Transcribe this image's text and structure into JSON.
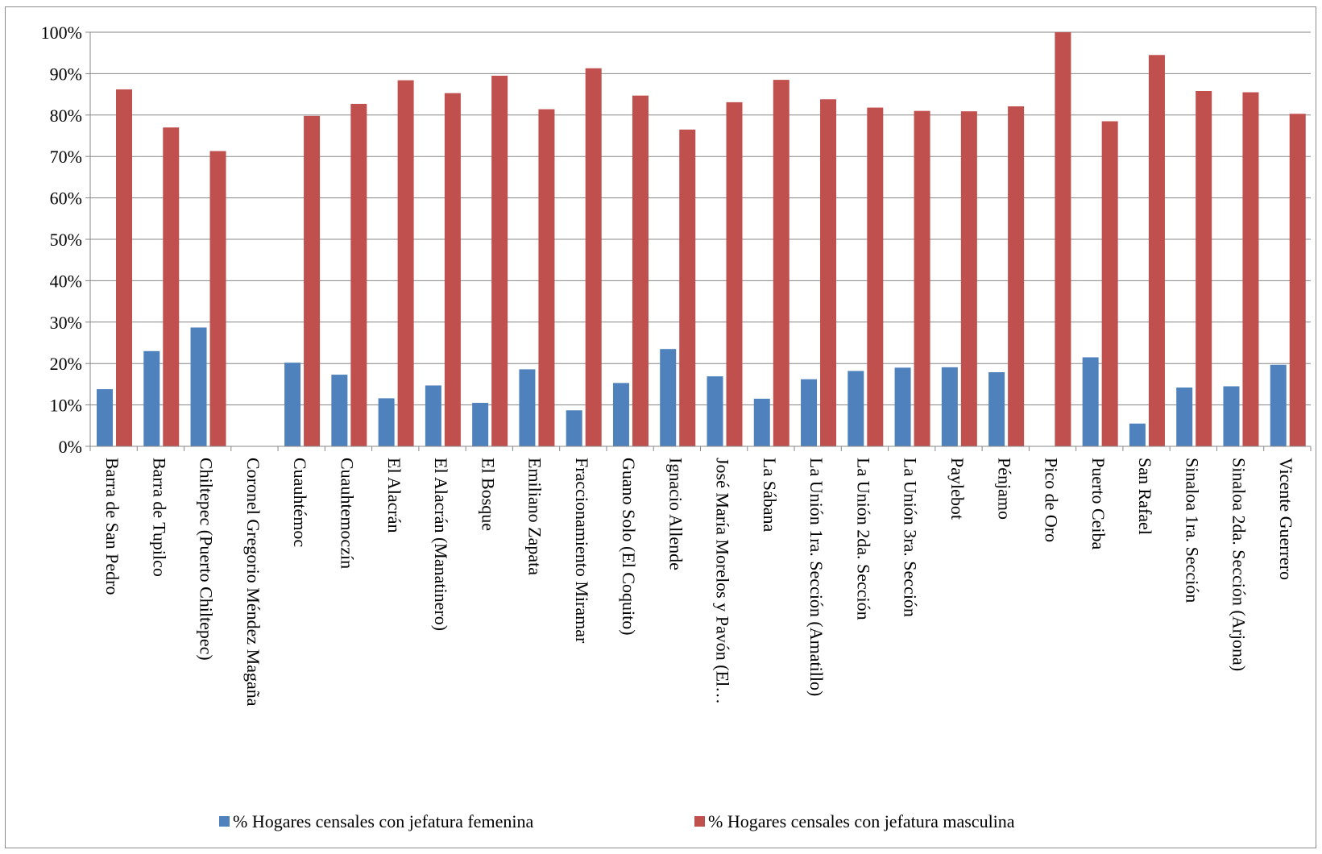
{
  "chart_data": {
    "type": "bar",
    "categories": [
      "Barra de San Pedro",
      "Barra de Tupilco",
      "Chiltepec (Puerto Chiltepec)",
      "Coronel Gregorio Méndez Magaña",
      "Cuauhtémoc",
      "Cuauhtemoczín",
      "El Alacrán",
      "El Alacrán (Manatinero)",
      "El Bosque",
      "Emiliano Zapata",
      "Fraccionamiento Miramar",
      "Guano Solo (El Coquito)",
      "Ignacio Allende",
      "José María Morelos y Pavón (El…",
      "La Sábana",
      "La Unión 1ra. Sección (Amatillo)",
      "La Unión 2da. Sección",
      "La Unión 3ra. Sección",
      "Paylebot",
      "Pénjamo",
      "Pico de Oro",
      "Puerto Ceiba",
      "San Rafael",
      "Sinaloa 1ra. Sección",
      "Sinaloa 2da. Sección (Arjona)",
      "Vicente Guerrero"
    ],
    "series": [
      {
        "name": "% Hogares censales con jefatura femenina",
        "color": "#4F81BD",
        "values": [
          13.8,
          23.0,
          28.7,
          0,
          20.2,
          17.3,
          11.6,
          14.7,
          10.5,
          18.6,
          8.7,
          15.3,
          23.5,
          16.9,
          11.5,
          16.2,
          18.2,
          19.0,
          19.1,
          17.9,
          0,
          21.5,
          5.5,
          14.2,
          14.5,
          19.7
        ]
      },
      {
        "name": "% Hogares censales con jefatura masculina",
        "color": "#C0504D",
        "values": [
          86.2,
          77.0,
          71.3,
          0,
          79.8,
          82.7,
          88.4,
          85.3,
          89.5,
          81.4,
          91.3,
          84.7,
          76.5,
          83.1,
          88.5,
          83.8,
          81.8,
          81.0,
          80.9,
          82.1,
          100,
          78.5,
          94.5,
          85.8,
          85.5,
          80.3
        ]
      }
    ],
    "yticks": [
      "0%",
      "10%",
      "20%",
      "30%",
      "40%",
      "50%",
      "60%",
      "70%",
      "80%",
      "90%",
      "100%"
    ],
    "ylim": [
      0,
      100
    ],
    "grid": true,
    "legend_position": "bottom"
  }
}
